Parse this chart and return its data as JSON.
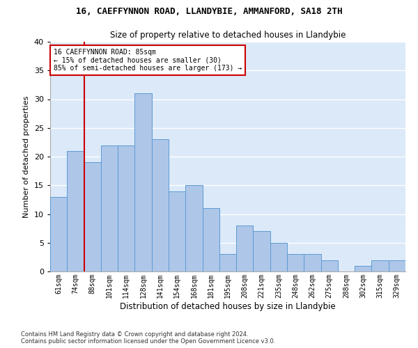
{
  "title1": "16, CAEFFYNNON ROAD, LLANDYBIE, AMMANFORD, SA18 2TH",
  "title2": "Size of property relative to detached houses in Llandybie",
  "xlabel": "Distribution of detached houses by size in Llandybie",
  "ylabel": "Number of detached properties",
  "categories": [
    "61sqm",
    "74sqm",
    "88sqm",
    "101sqm",
    "114sqm",
    "128sqm",
    "141sqm",
    "154sqm",
    "168sqm",
    "181sqm",
    "195sqm",
    "208sqm",
    "221sqm",
    "235sqm",
    "248sqm",
    "262sqm",
    "275sqm",
    "288sqm",
    "302sqm",
    "315sqm",
    "329sqm"
  ],
  "values": [
    13,
    21,
    19,
    22,
    22,
    31,
    23,
    14,
    15,
    11,
    3,
    8,
    7,
    5,
    3,
    3,
    2,
    0,
    1,
    2,
    2
  ],
  "bar_color": "#aec6e8",
  "bar_edge_color": "#5b9bd5",
  "vline_index": 2,
  "annotation_line1": "16 CAEFFYNNON ROAD: 85sqm",
  "annotation_line2": "← 15% of detached houses are smaller (30)",
  "annotation_line3": "85% of semi-detached houses are larger (173) →",
  "annotation_box_color": "#ffffff",
  "annotation_box_edge": "#cc0000",
  "vline_color": "#cc0000",
  "ylim": [
    0,
    40
  ],
  "yticks": [
    0,
    5,
    10,
    15,
    20,
    25,
    30,
    35,
    40
  ],
  "background_color": "#dce9f8",
  "footer1": "Contains HM Land Registry data © Crown copyright and database right 2024.",
  "footer2": "Contains public sector information licensed under the Open Government Licence v3.0."
}
